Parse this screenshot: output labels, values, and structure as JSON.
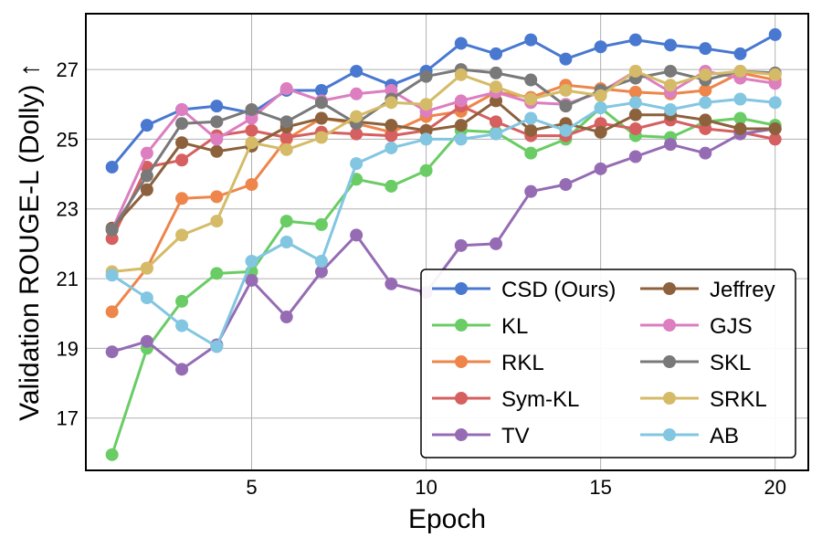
{
  "chart_data": {
    "type": "line",
    "title": "",
    "xlabel": "Epoch",
    "ylabel": "Validation ROUGE-L (Dolly) ↑",
    "xlim": [
      0.25,
      20.95
    ],
    "ylim": [
      15.5,
      28.6
    ],
    "xticks": [
      5,
      10,
      15,
      20
    ],
    "yticks": [
      17,
      19,
      21,
      23,
      25,
      27
    ],
    "grid": true,
    "legend_position": "lower-right",
    "legend_columns": 2,
    "x": [
      1,
      2,
      3,
      4,
      5,
      6,
      7,
      8,
      9,
      10,
      11,
      12,
      13,
      14,
      15,
      16,
      17,
      18,
      19,
      20
    ],
    "series": [
      {
        "name": "CSD (Ours)",
        "color": "#4878d0",
        "values": [
          24.2,
          25.4,
          25.85,
          25.95,
          25.75,
          26.4,
          26.4,
          26.95,
          26.55,
          26.95,
          27.75,
          27.45,
          27.85,
          27.3,
          27.65,
          27.85,
          27.7,
          27.6,
          27.45,
          28.0
        ]
      },
      {
        "name": "KL",
        "color": "#6acc64",
        "values": [
          15.95,
          19.0,
          20.35,
          21.15,
          21.2,
          22.65,
          22.55,
          23.85,
          23.65,
          24.1,
          25.25,
          25.2,
          24.6,
          25.0,
          25.9,
          25.1,
          25.05,
          25.5,
          25.6,
          25.4
        ]
      },
      {
        "name": "RKL",
        "color": "#ee854a",
        "values": [
          20.05,
          21.3,
          23.3,
          23.35,
          23.7,
          25.0,
          25.6,
          25.45,
          25.2,
          25.65,
          25.8,
          26.35,
          26.2,
          26.55,
          26.45,
          26.35,
          26.3,
          26.4,
          26.9,
          26.7
        ]
      },
      {
        "name": "Sym-KL",
        "color": "#d65f5f",
        "values": [
          22.15,
          24.2,
          24.4,
          25.1,
          25.25,
          25.05,
          25.2,
          25.15,
          25.1,
          25.25,
          25.95,
          25.5,
          25.1,
          25.1,
          25.45,
          25.3,
          25.55,
          25.3,
          25.2,
          25.0
        ]
      },
      {
        "name": "TV",
        "color": "#956cb4",
        "values": [
          18.9,
          19.2,
          18.4,
          19.1,
          20.95,
          19.9,
          21.2,
          22.25,
          20.85,
          20.6,
          21.95,
          22.0,
          23.5,
          23.7,
          24.15,
          24.5,
          24.85,
          24.6,
          25.15,
          25.3
        ]
      },
      {
        "name": "Jeffrey",
        "color": "#8c613c",
        "values": [
          22.45,
          23.55,
          24.9,
          24.65,
          24.8,
          25.35,
          25.6,
          25.5,
          25.4,
          25.25,
          25.4,
          26.1,
          25.25,
          25.45,
          25.2,
          25.7,
          25.7,
          25.55,
          25.3,
          25.3
        ]
      },
      {
        "name": "GJS",
        "color": "#dc7ec0",
        "values": [
          22.4,
          24.6,
          25.85,
          25.0,
          25.6,
          26.45,
          26.1,
          26.3,
          26.4,
          25.8,
          26.1,
          26.35,
          26.05,
          26.0,
          26.35,
          26.95,
          26.35,
          26.95,
          26.75,
          26.6
        ]
      },
      {
        "name": "SKL",
        "color": "#797979",
        "values": [
          22.4,
          23.95,
          25.45,
          25.5,
          25.85,
          25.5,
          26.05,
          25.45,
          26.15,
          26.8,
          27.0,
          26.9,
          26.7,
          25.95,
          26.4,
          26.75,
          26.95,
          26.7,
          26.95,
          26.9
        ]
      },
      {
        "name": "SRKL",
        "color": "#d5bb67",
        "values": [
          21.2,
          21.3,
          22.25,
          22.65,
          24.9,
          24.7,
          25.05,
          25.65,
          26.05,
          26.0,
          26.85,
          26.5,
          26.15,
          26.4,
          26.25,
          26.95,
          26.55,
          26.85,
          26.95,
          26.85
        ]
      },
      {
        "name": "AB",
        "color": "#82c6e2",
        "values": [
          21.1,
          20.45,
          19.65,
          19.05,
          21.5,
          22.05,
          21.5,
          24.3,
          24.75,
          25.0,
          25.0,
          25.15,
          25.6,
          25.25,
          25.9,
          26.05,
          25.85,
          26.05,
          26.15,
          26.05
        ]
      }
    ]
  }
}
